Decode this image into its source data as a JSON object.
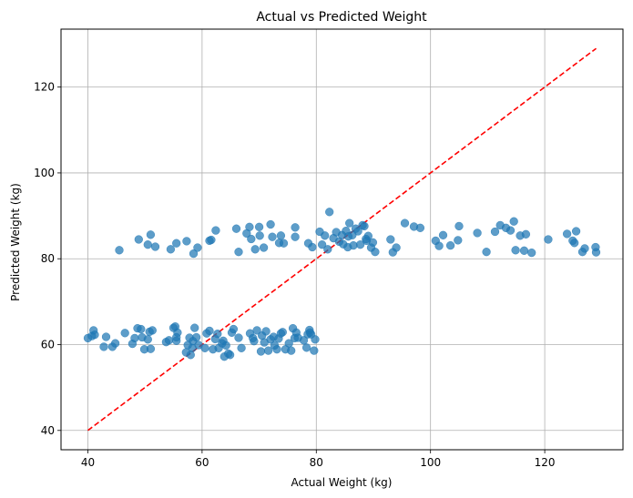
{
  "chart_data": {
    "type": "scatter",
    "title": "Actual vs Predicted Weight",
    "xlabel": "Actual Weight (kg)",
    "ylabel": "Predicted Weight (kg)",
    "xlim": [
      35.3,
      133.7
    ],
    "ylim": [
      35.5,
      133.5
    ],
    "xticks": [
      40,
      60,
      80,
      100,
      120
    ],
    "yticks": [
      40,
      60,
      80,
      100,
      120
    ],
    "grid": true,
    "point_color": "#1f77b4",
    "reference_line": {
      "x": [
        40,
        129
      ],
      "y": [
        40,
        129
      ],
      "color": "#ff0000",
      "style": "dashed"
    },
    "points": [
      [
        40.0,
        61.5
      ],
      [
        40.7,
        62.0
      ],
      [
        41.0,
        63.3
      ],
      [
        41.2,
        62.3
      ],
      [
        42.8,
        59.5
      ],
      [
        43.2,
        61.8
      ],
      [
        44.3,
        59.5
      ],
      [
        44.8,
        60.3
      ],
      [
        46.5,
        62.7
      ],
      [
        47.8,
        60.2
      ],
      [
        48.2,
        61.5
      ],
      [
        48.7,
        63.8
      ],
      [
        49.3,
        63.6
      ],
      [
        49.5,
        61.7
      ],
      [
        49.9,
        58.9
      ],
      [
        50.5,
        61.2
      ],
      [
        50.8,
        63.0
      ],
      [
        51.0,
        59.0
      ],
      [
        51.3,
        63.3
      ],
      [
        53.7,
        60.6
      ],
      [
        54.2,
        61.0
      ],
      [
        55.0,
        63.9
      ],
      [
        55.3,
        64.2
      ],
      [
        55.5,
        61.7
      ],
      [
        55.7,
        62.8
      ],
      [
        55.5,
        60.9
      ],
      [
        57.2,
        58.2
      ],
      [
        57.5,
        59.9
      ],
      [
        57.8,
        61.6
      ],
      [
        58.0,
        57.6
      ],
      [
        58.3,
        59.2
      ],
      [
        58.4,
        60.8
      ],
      [
        58.7,
        63.9
      ],
      [
        59.0,
        61.7
      ],
      [
        59.4,
        59.9
      ],
      [
        60.5,
        59.2
      ],
      [
        60.8,
        62.6
      ],
      [
        61.3,
        63.2
      ],
      [
        61.9,
        58.9
      ],
      [
        62.3,
        61.3
      ],
      [
        62.7,
        62.5
      ],
      [
        62.9,
        59.2
      ],
      [
        63.5,
        60.3
      ],
      [
        63.7,
        60.9
      ],
      [
        63.9,
        57.2
      ],
      [
        64.2,
        59.8
      ],
      [
        64.6,
        57.9
      ],
      [
        64.9,
        57.6
      ],
      [
        65.2,
        62.8
      ],
      [
        65.5,
        63.6
      ],
      [
        66.4,
        61.6
      ],
      [
        66.9,
        59.2
      ],
      [
        68.4,
        62.6
      ],
      [
        68.9,
        61.5
      ],
      [
        69.1,
        60.8
      ],
      [
        69.6,
        63.3
      ],
      [
        70.3,
        58.4
      ],
      [
        70.5,
        62.1
      ],
      [
        70.9,
        60.5
      ],
      [
        71.2,
        63.1
      ],
      [
        71.6,
        58.6
      ],
      [
        72.0,
        61.2
      ],
      [
        72.5,
        61.8
      ],
      [
        72.7,
        59.8
      ],
      [
        73.1,
        58.9
      ],
      [
        73.4,
        61.4
      ],
      [
        73.8,
        62.6
      ],
      [
        74.1,
        62.9
      ],
      [
        74.6,
        58.9
      ],
      [
        75.2,
        60.3
      ],
      [
        75.6,
        58.6
      ],
      [
        75.9,
        63.8
      ],
      [
        76.2,
        61.5
      ],
      [
        76.5,
        62.8
      ],
      [
        76.8,
        61.6
      ],
      [
        77.8,
        61.0
      ],
      [
        78.3,
        59.3
      ],
      [
        78.5,
        62.4
      ],
      [
        78.8,
        63.4
      ],
      [
        78.9,
        62.8
      ],
      [
        79.1,
        62.4
      ],
      [
        79.6,
        58.6
      ],
      [
        79.8,
        61.2
      ],
      [
        45.5,
        82.0
      ],
      [
        48.9,
        84.5
      ],
      [
        50.5,
        83.3
      ],
      [
        51.0,
        85.6
      ],
      [
        51.8,
        82.8
      ],
      [
        54.5,
        82.2
      ],
      [
        55.5,
        83.6
      ],
      [
        57.3,
        84.1
      ],
      [
        58.5,
        81.2
      ],
      [
        59.2,
        82.6
      ],
      [
        61.3,
        84.2
      ],
      [
        61.6,
        84.4
      ],
      [
        62.4,
        86.6
      ],
      [
        66.0,
        87.0
      ],
      [
        66.4,
        81.6
      ],
      [
        67.8,
        85.9
      ],
      [
        68.3,
        87.4
      ],
      [
        68.6,
        84.6
      ],
      [
        69.3,
        82.2
      ],
      [
        70.0,
        87.4
      ],
      [
        70.1,
        85.4
      ],
      [
        70.8,
        82.6
      ],
      [
        72.0,
        88.0
      ],
      [
        72.3,
        85.1
      ],
      [
        73.5,
        83.7
      ],
      [
        73.8,
        85.4
      ],
      [
        74.3,
        83.6
      ],
      [
        76.3,
        87.3
      ],
      [
        76.3,
        85.1
      ],
      [
        78.6,
        83.6
      ],
      [
        79.3,
        82.7
      ],
      [
        80.6,
        86.3
      ],
      [
        81.0,
        83.3
      ],
      [
        81.5,
        85.4
      ],
      [
        82.0,
        82.2
      ],
      [
        82.3,
        90.9
      ],
      [
        83.0,
        84.8
      ],
      [
        83.5,
        86.2
      ],
      [
        84.0,
        84.0
      ],
      [
        84.5,
        85.5
      ],
      [
        84.7,
        83.4
      ],
      [
        85.2,
        86.5
      ],
      [
        85.5,
        82.7
      ],
      [
        85.6,
        85.2
      ],
      [
        85.8,
        88.3
      ],
      [
        86.3,
        85.5
      ],
      [
        86.5,
        83.1
      ],
      [
        86.9,
        87.0
      ],
      [
        87.3,
        86.4
      ],
      [
        87.7,
        83.3
      ],
      [
        88.1,
        87.8
      ],
      [
        88.4,
        87.6
      ],
      [
        88.7,
        84.6
      ],
      [
        88.8,
        84.2
      ],
      [
        89.1,
        85.3
      ],
      [
        89.6,
        82.6
      ],
      [
        89.9,
        83.8
      ],
      [
        90.3,
        81.6
      ],
      [
        93.0,
        84.5
      ],
      [
        93.4,
        81.5
      ],
      [
        94.0,
        82.6
      ],
      [
        95.5,
        88.3
      ],
      [
        97.1,
        87.5
      ],
      [
        98.2,
        87.2
      ],
      [
        100.9,
        84.2
      ],
      [
        101.5,
        83.0
      ],
      [
        102.2,
        85.5
      ],
      [
        103.5,
        83.1
      ],
      [
        104.8,
        84.3
      ],
      [
        105.0,
        87.6
      ],
      [
        108.2,
        86.0
      ],
      [
        109.8,
        81.6
      ],
      [
        111.3,
        86.3
      ],
      [
        112.2,
        87.8
      ],
      [
        113.2,
        87.2
      ],
      [
        114.0,
        86.6
      ],
      [
        114.6,
        88.7
      ],
      [
        114.9,
        82.0
      ],
      [
        115.7,
        85.4
      ],
      [
        116.7,
        85.7
      ],
      [
        116.4,
        81.9
      ],
      [
        117.7,
        81.4
      ],
      [
        120.6,
        84.5
      ],
      [
        123.9,
        85.8
      ],
      [
        124.9,
        84.2
      ],
      [
        125.2,
        83.7
      ],
      [
        125.5,
        86.4
      ],
      [
        126.6,
        81.6
      ],
      [
        127.0,
        82.4
      ],
      [
        128.9,
        82.7
      ],
      [
        129.0,
        81.5
      ]
    ]
  }
}
